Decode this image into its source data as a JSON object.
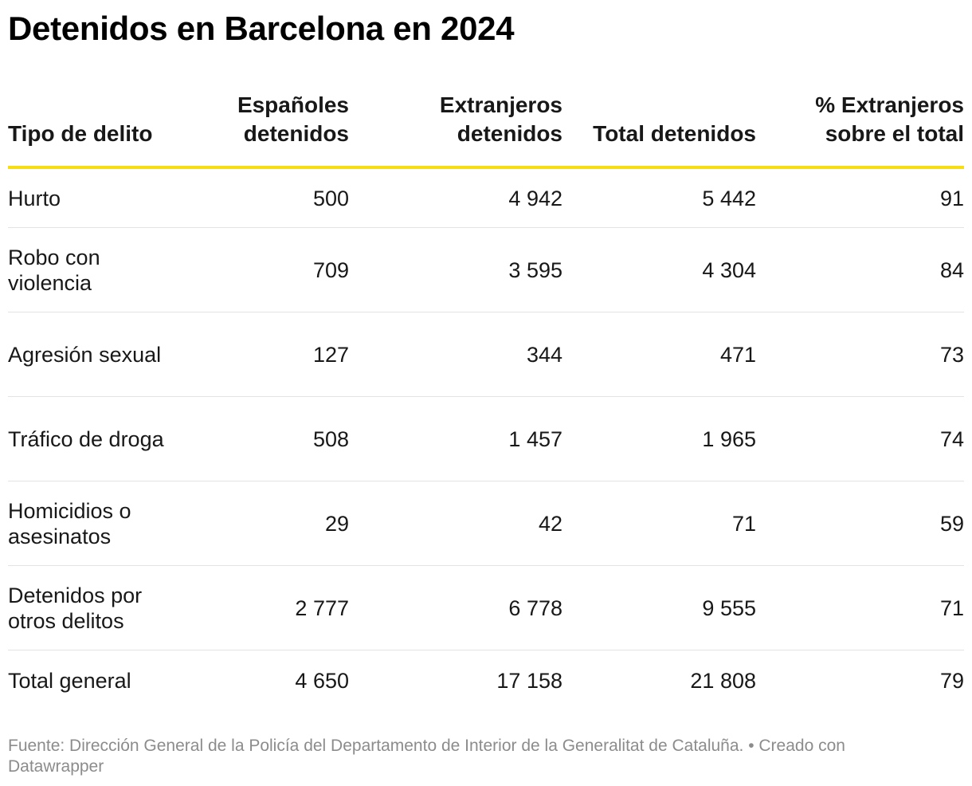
{
  "title": "Detenidos en Barcelona en 2024",
  "table": {
    "headers": [
      "Tipo de delito",
      "Españoles detenidos",
      "Extranjeros detenidos",
      "Total detenidos",
      "% Extranjeros sobre el total"
    ],
    "rows": [
      [
        "Hurto",
        "500",
        "4 942",
        "5 442",
        "91"
      ],
      [
        "Robo con violencia",
        "709",
        "3 595",
        "4 304",
        "84"
      ],
      [
        "Agresión sexual",
        "127",
        "344",
        "471",
        "73"
      ],
      [
        "Tráfico de droga",
        "508",
        "1 457",
        "1 965",
        "74"
      ],
      [
        "Homicidios o asesinatos",
        "29",
        "42",
        "71",
        "59"
      ],
      [
        "Detenidos por otros delitos",
        "2 777",
        "6 778",
        "9 555",
        "71"
      ],
      [
        "Total general",
        "4 650",
        "17 158",
        "21 808",
        "79"
      ]
    ]
  },
  "footer": "Fuente: Dirección General de la Policía del Departamento de Interior de la Generalitat de Cataluña. • Creado con Datawrapper",
  "colors": {
    "header_rule": "#f7de14",
    "row_divider": "#e3e3e3",
    "footer_text": "#8c8c8c"
  },
  "chart_data": {
    "type": "table",
    "title": "Detenidos en Barcelona en 2024",
    "columns": [
      "Tipo de delito",
      "Españoles detenidos",
      "Extranjeros detenidos",
      "Total detenidos",
      "% Extranjeros sobre el total"
    ],
    "categories": [
      "Hurto",
      "Robo con violencia",
      "Agresión sexual",
      "Tráfico de droga",
      "Homicidios o asesinatos",
      "Detenidos por otros delitos",
      "Total general"
    ],
    "series": [
      {
        "name": "Españoles detenidos",
        "values": [
          500,
          709,
          127,
          508,
          29,
          2777,
          4650
        ]
      },
      {
        "name": "Extranjeros detenidos",
        "values": [
          4942,
          3595,
          344,
          1457,
          42,
          6778,
          17158
        ]
      },
      {
        "name": "Total detenidos",
        "values": [
          5442,
          4304,
          471,
          1965,
          71,
          9555,
          21808
        ]
      },
      {
        "name": "% Extranjeros sobre el total",
        "values": [
          91,
          84,
          73,
          74,
          59,
          71,
          79
        ]
      }
    ]
  }
}
